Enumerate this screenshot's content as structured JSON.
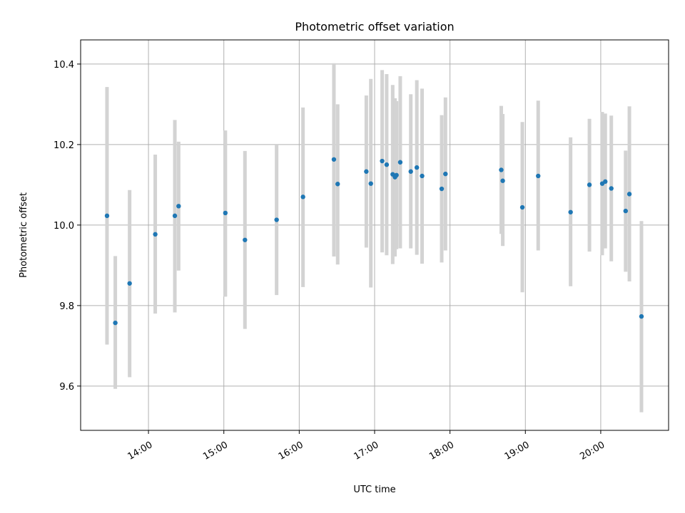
{
  "chart_data": {
    "type": "scatter",
    "title": "Photometric offset variation",
    "xlabel": "UTC time",
    "ylabel": "Photometric offset",
    "x_unit": "UTC hour of day (decimal)",
    "xlim": [
      13.1,
      20.9
    ],
    "ylim": [
      9.49,
      10.46
    ],
    "grid": true,
    "x_ticks": [
      {
        "value": 14,
        "label": "14:00"
      },
      {
        "value": 15,
        "label": "15:00"
      },
      {
        "value": 16,
        "label": "16:00"
      },
      {
        "value": 17,
        "label": "17:00"
      },
      {
        "value": 18,
        "label": "18:00"
      },
      {
        "value": 19,
        "label": "19:00"
      },
      {
        "value": 20,
        "label": "20:00"
      }
    ],
    "y_ticks": [
      {
        "value": 9.6,
        "label": "9.6"
      },
      {
        "value": 9.8,
        "label": "9.8"
      },
      {
        "value": 10.0,
        "label": "10.0"
      },
      {
        "value": 10.2,
        "label": "10.2"
      },
      {
        "value": 10.4,
        "label": "10.4"
      }
    ],
    "colors": {
      "point": "#1f77b4",
      "errorbar": "#d3d3d3",
      "grid": "#b0b0b0"
    },
    "points": [
      {
        "x": 13.45,
        "y": 10.023,
        "ylow": 9.703,
        "yhigh": 10.343
      },
      {
        "x": 13.56,
        "y": 9.757,
        "ylow": 9.593,
        "yhigh": 9.923
      },
      {
        "x": 13.75,
        "y": 9.855,
        "ylow": 9.622,
        "yhigh": 10.087
      },
      {
        "x": 14.09,
        "y": 9.977,
        "ylow": 9.78,
        "yhigh": 10.175
      },
      {
        "x": 14.35,
        "y": 10.023,
        "ylow": 9.783,
        "yhigh": 10.261
      },
      {
        "x": 14.4,
        "y": 10.047,
        "ylow": 9.887,
        "yhigh": 10.207
      },
      {
        "x": 15.02,
        "y": 10.03,
        "ylow": 9.822,
        "yhigh": 10.235
      },
      {
        "x": 15.28,
        "y": 9.963,
        "ylow": 9.742,
        "yhigh": 10.184
      },
      {
        "x": 15.7,
        "y": 10.013,
        "ylow": 9.826,
        "yhigh": 10.2
      },
      {
        "x": 16.05,
        "y": 10.07,
        "ylow": 9.846,
        "yhigh": 10.292
      },
      {
        "x": 16.46,
        "y": 10.163,
        "ylow": 9.922,
        "yhigh": 10.402
      },
      {
        "x": 16.51,
        "y": 10.102,
        "ylow": 9.902,
        "yhigh": 10.3
      },
      {
        "x": 16.89,
        "y": 10.133,
        "ylow": 9.944,
        "yhigh": 10.322
      },
      {
        "x": 16.95,
        "y": 10.103,
        "ylow": 9.845,
        "yhigh": 10.363
      },
      {
        "x": 17.1,
        "y": 10.159,
        "ylow": 9.932,
        "yhigh": 10.385
      },
      {
        "x": 17.16,
        "y": 10.15,
        "ylow": 9.925,
        "yhigh": 10.375
      },
      {
        "x": 17.24,
        "y": 10.126,
        "ylow": 9.903,
        "yhigh": 10.348
      },
      {
        "x": 17.27,
        "y": 10.119,
        "ylow": 9.922,
        "yhigh": 10.315
      },
      {
        "x": 17.29,
        "y": 10.124,
        "ylow": 9.94,
        "yhigh": 10.308
      },
      {
        "x": 17.34,
        "y": 10.156,
        "ylow": 9.942,
        "yhigh": 10.37
      },
      {
        "x": 17.48,
        "y": 10.133,
        "ylow": 9.942,
        "yhigh": 10.325
      },
      {
        "x": 17.56,
        "y": 10.143,
        "ylow": 9.926,
        "yhigh": 10.36
      },
      {
        "x": 17.63,
        "y": 10.122,
        "ylow": 9.904,
        "yhigh": 10.339
      },
      {
        "x": 17.89,
        "y": 10.09,
        "ylow": 9.907,
        "yhigh": 10.273
      },
      {
        "x": 17.94,
        "y": 10.127,
        "ylow": 9.937,
        "yhigh": 10.317
      },
      {
        "x": 18.68,
        "y": 10.137,
        "ylow": 9.978,
        "yhigh": 10.296
      },
      {
        "x": 18.7,
        "y": 10.11,
        "ylow": 9.948,
        "yhigh": 10.276
      },
      {
        "x": 18.96,
        "y": 10.044,
        "ylow": 9.833,
        "yhigh": 10.256
      },
      {
        "x": 19.17,
        "y": 10.122,
        "ylow": 9.937,
        "yhigh": 10.309
      },
      {
        "x": 19.6,
        "y": 10.032,
        "ylow": 9.848,
        "yhigh": 10.218
      },
      {
        "x": 19.85,
        "y": 10.1,
        "ylow": 9.934,
        "yhigh": 10.264
      },
      {
        "x": 20.02,
        "y": 10.103,
        "ylow": 9.925,
        "yhigh": 10.281
      },
      {
        "x": 20.06,
        "y": 10.108,
        "ylow": 9.942,
        "yhigh": 10.277
      },
      {
        "x": 20.14,
        "y": 10.091,
        "ylow": 9.91,
        "yhigh": 10.272
      },
      {
        "x": 20.33,
        "y": 10.035,
        "ylow": 9.884,
        "yhigh": 10.185
      },
      {
        "x": 20.38,
        "y": 10.077,
        "ylow": 9.86,
        "yhigh": 10.295
      },
      {
        "x": 20.54,
        "y": 9.773,
        "ylow": 9.535,
        "yhigh": 10.01
      }
    ]
  }
}
